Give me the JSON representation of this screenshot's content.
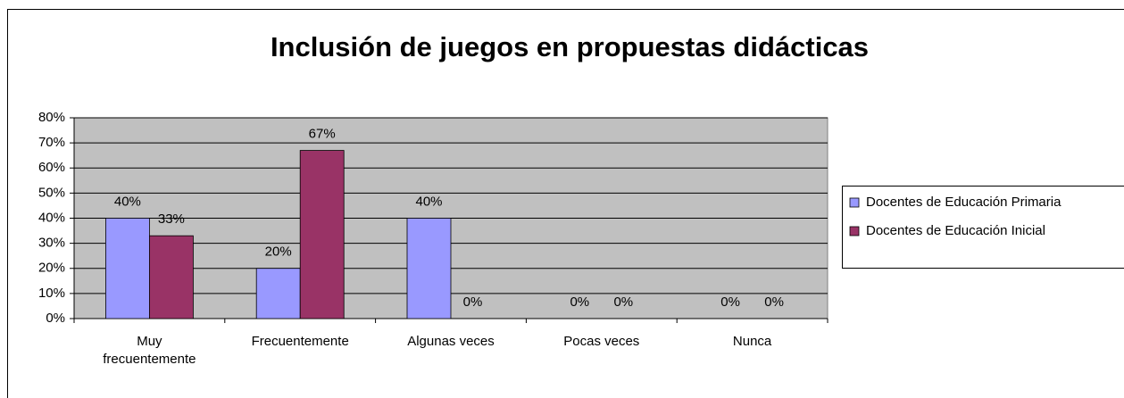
{
  "chart_data": {
    "type": "bar",
    "title": "Inclusión de juegos en propuestas didácticas",
    "categories": [
      "Muy frecuentemente",
      "Frecuentemente",
      "Algunas veces",
      "Pocas veces",
      "Nunca"
    ],
    "series": [
      {
        "name": "Docentes de Educación Primaria",
        "color": "#9999ff",
        "values": [
          40,
          20,
          40,
          0,
          0
        ],
        "value_labels": [
          "40%",
          "20%",
          "40%",
          "0%",
          "0%"
        ]
      },
      {
        "name": "Docentes de Educación Inicial",
        "color": "#993366",
        "values": [
          33,
          67,
          0,
          0,
          0
        ],
        "value_labels": [
          "33%",
          "67%",
          "0%",
          "0%",
          "0%"
        ]
      }
    ],
    "ylim": [
      0,
      80
    ],
    "yticks": [
      {
        "value": 0,
        "label": "0%"
      },
      {
        "value": 10,
        "label": "10%"
      },
      {
        "value": 20,
        "label": "20%"
      },
      {
        "value": 30,
        "label": "30%"
      },
      {
        "value": 40,
        "label": "40%"
      },
      {
        "value": 50,
        "label": "50%"
      },
      {
        "value": 60,
        "label": "60%"
      },
      {
        "value": 70,
        "label": "70%"
      },
      {
        "value": 80,
        "label": "80%"
      }
    ],
    "grid": true,
    "legend": "right"
  }
}
